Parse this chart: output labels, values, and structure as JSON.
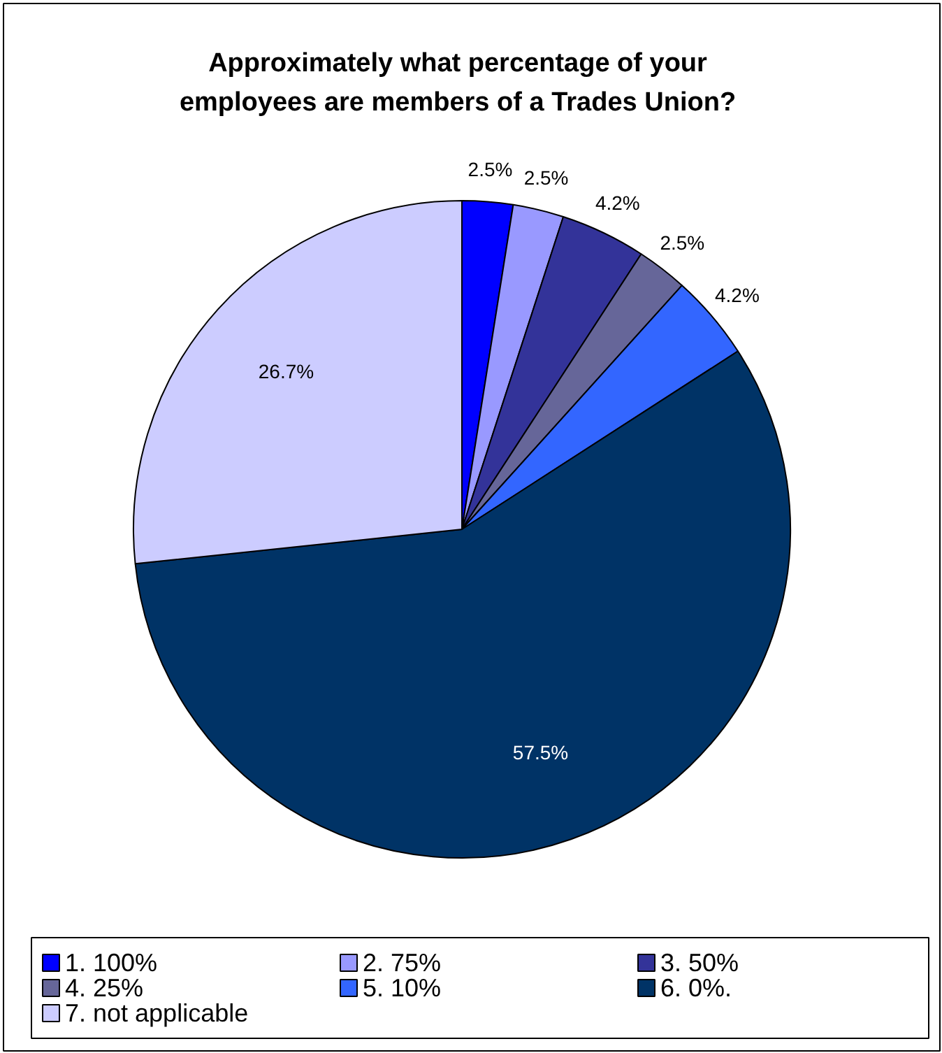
{
  "chart_data": {
    "type": "pie",
    "title": "Approximately what percentage of your employees are members of a Trades Union?",
    "categories": [
      "1. 100%",
      "2. 75%",
      "3. 50%",
      "4. 25%",
      "5. 10%",
      "6. 0%.",
      "7. not applicable"
    ],
    "values": [
      2.5,
      2.5,
      4.2,
      2.5,
      4.2,
      57.5,
      26.7
    ],
    "colors": [
      "#0000ff",
      "#9999ff",
      "#333399",
      "#666699",
      "#3366ff",
      "#003366",
      "#ccccff"
    ],
    "value_labels": [
      "2.5%",
      "2.5%",
      "4.2%",
      "2.5%",
      "4.2%",
      "57.5%",
      "26.7%"
    ],
    "legend": "bottom"
  }
}
